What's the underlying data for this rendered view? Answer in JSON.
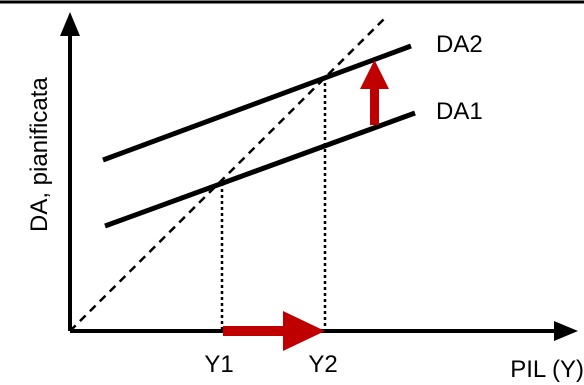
{
  "diagram": {
    "y_axis_label": "DA, pianificata",
    "x_axis_label": "PIL (Y)",
    "lines": {
      "da1": "DA1",
      "da2": "DA2"
    },
    "points": {
      "y1": "Y1",
      "y2": "Y2"
    },
    "colors": {
      "line": "#000000",
      "arrow": "#c00000"
    }
  }
}
